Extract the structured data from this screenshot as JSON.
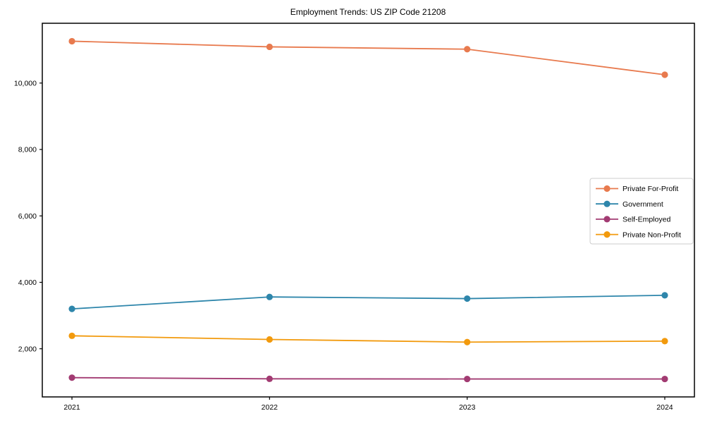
{
  "chart_data": {
    "type": "line",
    "title": "Employment Trends: US ZIP Code 21208",
    "x": [
      2021,
      2022,
      2023,
      2024
    ],
    "x_tick_labels": [
      "2021",
      "2022",
      "2023",
      "2024"
    ],
    "series": [
      {
        "name": "Private For-Profit",
        "color": "#e87a4e",
        "values": [
          11260,
          11090,
          11020,
          10250
        ]
      },
      {
        "name": "Government",
        "color": "#2e86ab",
        "values": [
          3200,
          3560,
          3510,
          3610
        ]
      },
      {
        "name": "Self-Employed",
        "color": "#a23b72",
        "values": [
          1130,
          1095,
          1090,
          1090
        ]
      },
      {
        "name": "Private Non-Profit",
        "color": "#f29a0d",
        "values": [
          2390,
          2280,
          2200,
          2230
        ]
      }
    ],
    "ytick_values": [
      2000,
      4000,
      6000,
      8000,
      10000
    ],
    "ytick_labels": [
      "2,000",
      "4,000",
      "6,000",
      "8,000",
      "10,000"
    ],
    "xlim": [
      2020.85,
      2024.15
    ],
    "ylim": [
      550,
      11800
    ],
    "xlabel": "",
    "ylabel": "",
    "grid": false,
    "legend_position": "center right",
    "marker": "circle",
    "frame_color": "#000000",
    "legend_border_color": "#cccccc"
  }
}
